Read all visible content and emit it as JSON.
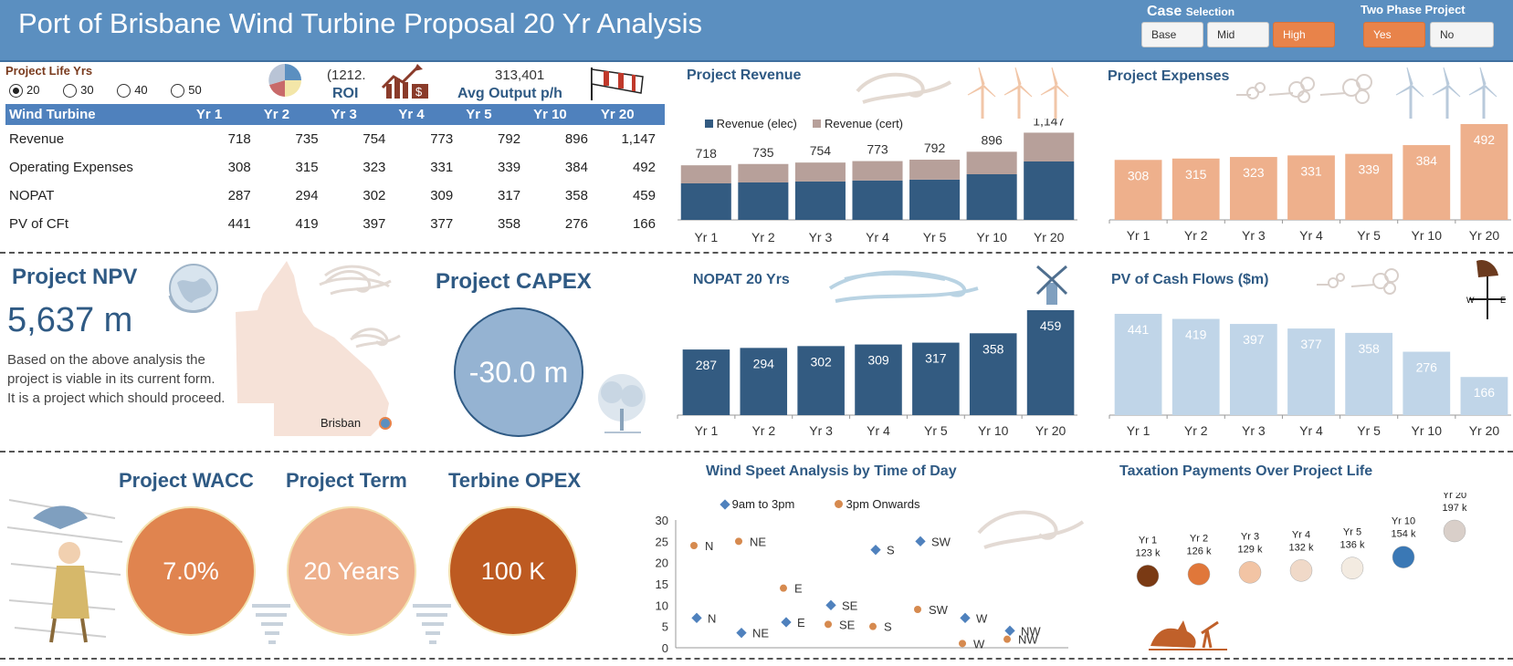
{
  "header": {
    "title": "Port of Brisbane Wind Turbine Proposal 20 Yr Analysis",
    "case_label_big": "Case",
    "case_label_small": "Selection",
    "case_options": [
      "Base",
      "Mid",
      "High"
    ],
    "case_selected": "High",
    "two_phase_label": "Two Phase Project",
    "two_phase_options": [
      "Yes",
      "No"
    ],
    "two_phase_selected": "Yes"
  },
  "life": {
    "label": "Project Life Yrs",
    "options": [
      "20",
      "30",
      "40",
      "50"
    ],
    "selected": "20"
  },
  "kpis": {
    "roi_value": "(1212.",
    "roi_label": "ROI",
    "avg_output_value": "313,401",
    "avg_output_label": "Avg Output p/h"
  },
  "table": {
    "headers": [
      "Wind Turbine",
      "Yr 1",
      "Yr 2",
      "Yr 3",
      "Yr 4",
      "Yr 5",
      "Yr 10",
      "Yr 20"
    ],
    "rows": [
      {
        "label": "Revenue",
        "values": [
          "718",
          "735",
          "754",
          "773",
          "792",
          "896",
          "1,147"
        ]
      },
      {
        "label": "Operating Expenses",
        "values": [
          "308",
          "315",
          "323",
          "331",
          "339",
          "384",
          "492"
        ]
      },
      {
        "label": "NOPAT",
        "values": [
          "287",
          "294",
          "302",
          "309",
          "317",
          "358",
          "459"
        ]
      },
      {
        "label": "PV of CFt",
        "values": [
          "441",
          "419",
          "397",
          "377",
          "358",
          "276",
          "166"
        ]
      }
    ]
  },
  "npv": {
    "title": "Project NPV",
    "value": "5,637 m",
    "text": "Based on the above analysis the project is viable in its current form. It is a project which should proceed.",
    "map_label": "Brisban"
  },
  "capex": {
    "title": "Project CAPEX",
    "value": "-30.0 m"
  },
  "wacc": {
    "title": "Project WACC",
    "value": "7.0%"
  },
  "term": {
    "title": "Project Term",
    "value": "20 Years"
  },
  "opex": {
    "title": "Terbine OPEX",
    "value": "100 K"
  },
  "colors": {
    "header_blue": "#5b8fc0",
    "navy": "#335b81",
    "tan": "#b7a09a",
    "peach": "#eeb08c",
    "light_blue": "#c0d5e8",
    "orange": "#e8834a",
    "dark_orange": "#bd5a21"
  },
  "chart_data": [
    {
      "id": "revenue",
      "type": "bar",
      "title": "Project Revenue",
      "categories": [
        "Yr 1",
        "Yr 2",
        "Yr 3",
        "Yr 4",
        "Yr 5",
        "Yr 10",
        "Yr 20"
      ],
      "series": [
        {
          "name": "Revenue (elec)",
          "values": [
            480,
            492,
            505,
            518,
            530,
            600,
            768
          ]
        },
        {
          "name": "Revenue (cert)",
          "values": [
            238,
            243,
            249,
            255,
            262,
            296,
            379
          ]
        }
      ],
      "totals": [
        "718",
        "735",
        "754",
        "773",
        "792",
        "896",
        "1,147"
      ],
      "legend": "top"
    },
    {
      "id": "expenses",
      "type": "bar",
      "title": "Project Expenses",
      "categories": [
        "Yr 1",
        "Yr 2",
        "Yr 3",
        "Yr 4",
        "Yr 5",
        "Yr 10",
        "Yr 20"
      ],
      "values": [
        308,
        315,
        323,
        331,
        339,
        384,
        492
      ]
    },
    {
      "id": "nopat",
      "type": "bar",
      "title": "NOPAT 20 Yrs",
      "categories": [
        "Yr 1",
        "Yr 2",
        "Yr 3",
        "Yr 4",
        "Yr 5",
        "Yr 10",
        "Yr 20"
      ],
      "values": [
        287,
        294,
        302,
        309,
        317,
        358,
        459
      ]
    },
    {
      "id": "pv",
      "type": "bar",
      "title": "PV of Cash Flows ($m)",
      "categories": [
        "Yr 1",
        "Yr 2",
        "Yr 3",
        "Yr 4",
        "Yr 5",
        "Yr 10",
        "Yr 20"
      ],
      "values": [
        441,
        419,
        397,
        377,
        358,
        276,
        166
      ]
    },
    {
      "id": "wind",
      "type": "scatter",
      "title": "Wind Speet Analysis by Time of Day",
      "ylim": [
        0,
        30
      ],
      "yticks": [
        "30",
        "25",
        "20",
        "15",
        "10",
        "5",
        "0"
      ],
      "series": [
        {
          "name": "9am to 3pm",
          "points": [
            {
              "x": 1,
              "y": 7,
              "label": "N"
            },
            {
              "x": 2,
              "y": 3.5,
              "label": "NE"
            },
            {
              "x": 3,
              "y": 6,
              "label": "E"
            },
            {
              "x": 4,
              "y": 10,
              "label": "SE"
            },
            {
              "x": 5,
              "y": 23,
              "label": "S"
            },
            {
              "x": 6,
              "y": 25,
              "label": "SW"
            },
            {
              "x": 7,
              "y": 7,
              "label": "W"
            },
            {
              "x": 8,
              "y": 4,
              "label": "NW"
            }
          ]
        },
        {
          "name": "3pm Onwards",
          "points": [
            {
              "x": 1,
              "y": 24,
              "label": "N"
            },
            {
              "x": 2,
              "y": 25,
              "label": "NE"
            },
            {
              "x": 3,
              "y": 14,
              "label": "E"
            },
            {
              "x": 4,
              "y": 5.5,
              "label": "SE"
            },
            {
              "x": 5,
              "y": 5,
              "label": "S"
            },
            {
              "x": 6,
              "y": 9,
              "label": "SW"
            },
            {
              "x": 7,
              "y": 1,
              "label": "W"
            },
            {
              "x": 8,
              "y": 2,
              "label": "NW"
            }
          ]
        }
      ]
    },
    {
      "id": "tax",
      "type": "scatter",
      "title": "Taxation Payments Over Project Life",
      "categories": [
        "Yr 1",
        "Yr 2",
        "Yr 3",
        "Yr 4",
        "Yr 5",
        "Yr 10",
        "Yr 20"
      ],
      "labels": [
        "123 k",
        "126 k",
        "129 k",
        "132 k",
        "136 k",
        "154 k",
        "197 k"
      ],
      "values": [
        123,
        126,
        129,
        132,
        136,
        154,
        197
      ]
    }
  ]
}
